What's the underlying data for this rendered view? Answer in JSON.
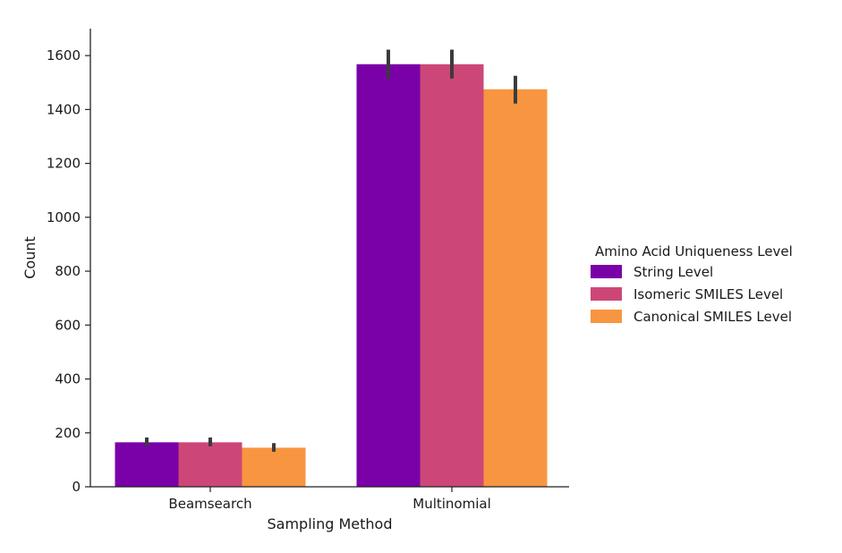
{
  "chart_data": {
    "type": "bar",
    "categories": [
      "Beamsearch",
      "Multinomial"
    ],
    "series": [
      {
        "name": "String Level",
        "color": "#7a00a8",
        "values": [
          165,
          1568
        ],
        "err_low": [
          150,
          1515
        ],
        "err_high": [
          183,
          1622
        ]
      },
      {
        "name": "Isomeric SMILES Level",
        "color": "#cc4778",
        "values": [
          165,
          1568
        ],
        "err_low": [
          150,
          1515
        ],
        "err_high": [
          183,
          1622
        ]
      },
      {
        "name": "Canonical SMILES Level",
        "color": "#f89540",
        "values": [
          145,
          1475
        ],
        "err_low": [
          130,
          1422
        ],
        "err_high": [
          162,
          1525
        ]
      }
    ],
    "xlabel": "Sampling Method",
    "ylabel": "Count",
    "ylim": [
      0,
      1700
    ],
    "yticks": [
      0,
      200,
      400,
      600,
      800,
      1000,
      1200,
      1400,
      1600
    ],
    "legend_title": "Amino Acid Uniqueness Level",
    "legend_position": "right",
    "grid": false,
    "error_bar_color": "#3b3b3b"
  }
}
